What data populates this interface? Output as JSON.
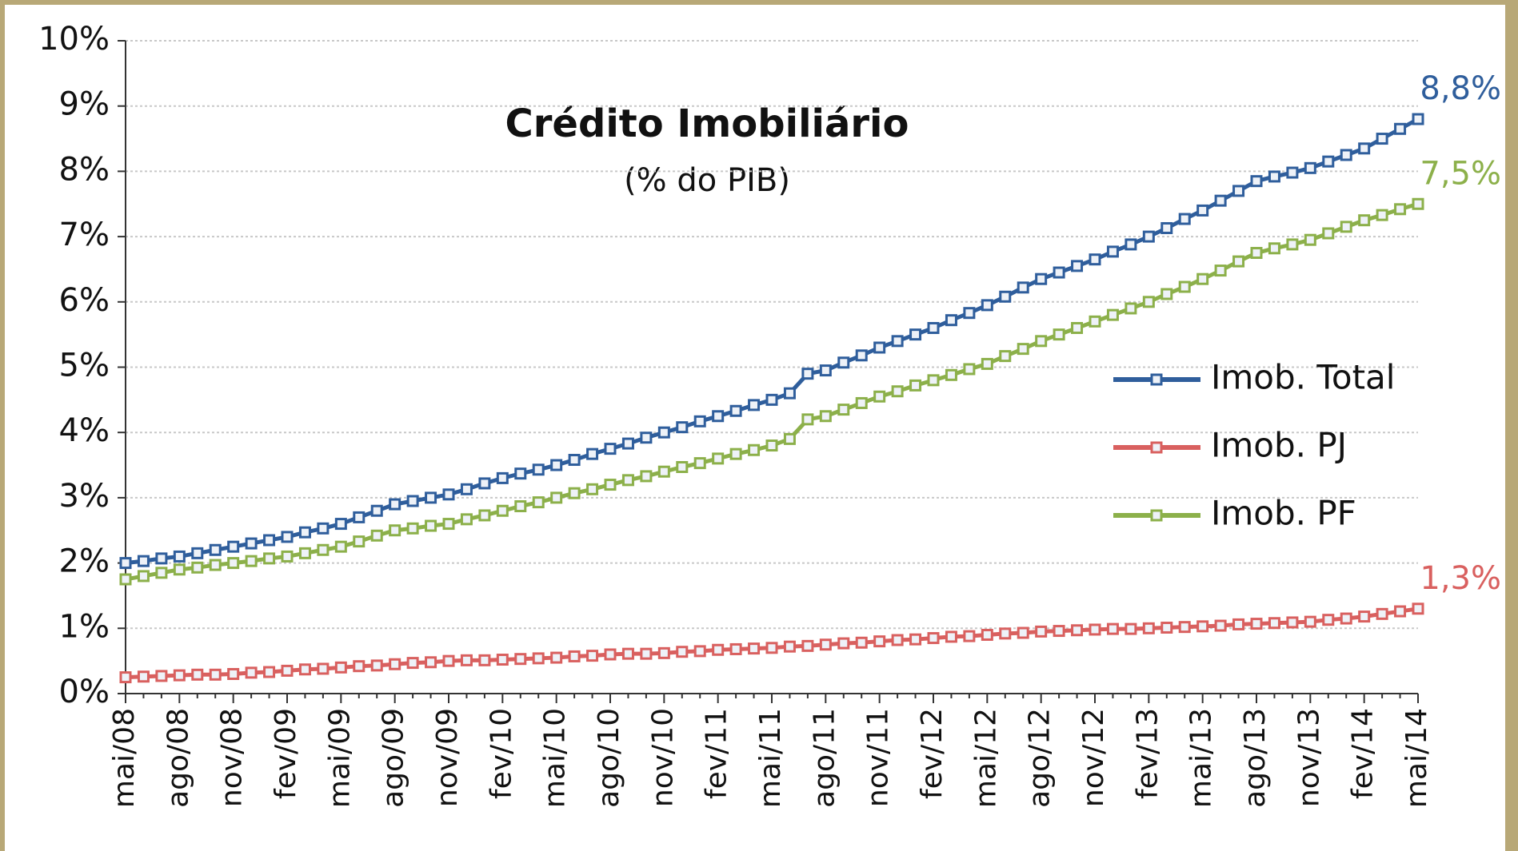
{
  "chart_data": {
    "type": "line",
    "title": "Crédito Imobiliário",
    "subtitle": "(% do PIB)",
    "categories": [
      "mai/08",
      null,
      null,
      "ago/08",
      null,
      null,
      "nov/08",
      null,
      null,
      "fev/09",
      null,
      null,
      "mai/09",
      null,
      null,
      "ago/09",
      null,
      null,
      "nov/09",
      null,
      null,
      "fev/10",
      null,
      null,
      "mai/10",
      null,
      null,
      "ago/10",
      null,
      null,
      "nov/10",
      null,
      null,
      "fev/11",
      null,
      null,
      "mai/11",
      null,
      null,
      "ago/11",
      null,
      null,
      "nov/11",
      null,
      null,
      "fev/12",
      null,
      null,
      "mai/12",
      null,
      null,
      "ago/12",
      null,
      null,
      "nov/12",
      null,
      null,
      "fev/13",
      null,
      null,
      "mai/13",
      null,
      null,
      "ago/13",
      null,
      null,
      "nov/13",
      null,
      null,
      "fev/14",
      null,
      null,
      "mai/14"
    ],
    "series": [
      {
        "name": "Imob. Total",
        "color": "#2f5e9c",
        "values": [
          2.0,
          2.03,
          2.07,
          2.1,
          2.15,
          2.2,
          2.25,
          2.3,
          2.35,
          2.4,
          2.47,
          2.53,
          2.6,
          2.7,
          2.8,
          2.9,
          2.95,
          3.0,
          3.05,
          3.13,
          3.22,
          3.3,
          3.37,
          3.43,
          3.5,
          3.58,
          3.67,
          3.75,
          3.83,
          3.92,
          4.0,
          4.08,
          4.17,
          4.25,
          4.33,
          4.42,
          4.5,
          4.6,
          4.9,
          4.95,
          5.07,
          5.18,
          5.3,
          5.4,
          5.5,
          5.6,
          5.72,
          5.83,
          5.95,
          6.08,
          6.22,
          6.35,
          6.45,
          6.55,
          6.65,
          6.77,
          6.88,
          7.0,
          7.13,
          7.27,
          7.4,
          7.55,
          7.7,
          7.85,
          7.92,
          7.98,
          8.05,
          8.15,
          8.25,
          8.35,
          8.5,
          8.65,
          8.8
        ],
        "value_labels": {
          "72": "8,8%"
        }
      },
      {
        "name": "Imob. PJ",
        "color": "#d9605f",
        "values": [
          0.25,
          0.26,
          0.27,
          0.28,
          0.29,
          0.29,
          0.3,
          0.32,
          0.33,
          0.35,
          0.37,
          0.38,
          0.4,
          0.42,
          0.43,
          0.45,
          0.47,
          0.48,
          0.5,
          0.51,
          0.51,
          0.52,
          0.53,
          0.54,
          0.55,
          0.57,
          0.58,
          0.6,
          0.61,
          0.61,
          0.62,
          0.64,
          0.65,
          0.67,
          0.68,
          0.69,
          0.7,
          0.72,
          0.73,
          0.75,
          0.77,
          0.78,
          0.8,
          0.82,
          0.83,
          0.85,
          0.87,
          0.88,
          0.9,
          0.92,
          0.93,
          0.95,
          0.96,
          0.97,
          0.98,
          0.99,
          0.99,
          1.0,
          1.01,
          1.02,
          1.03,
          1.04,
          1.06,
          1.07,
          1.08,
          1.09,
          1.1,
          1.13,
          1.15,
          1.18,
          1.22,
          1.26,
          1.3
        ],
        "value_labels": {
          "72": "1,3%"
        }
      },
      {
        "name": "Imob. PF",
        "color": "#8cb04a",
        "values": [
          1.75,
          1.8,
          1.85,
          1.9,
          1.93,
          1.97,
          2.0,
          2.03,
          2.07,
          2.1,
          2.15,
          2.2,
          2.25,
          2.33,
          2.42,
          2.5,
          2.53,
          2.57,
          2.6,
          2.67,
          2.73,
          2.8,
          2.87,
          2.93,
          3.0,
          3.07,
          3.13,
          3.2,
          3.27,
          3.33,
          3.4,
          3.47,
          3.53,
          3.6,
          3.67,
          3.73,
          3.8,
          3.9,
          4.2,
          4.25,
          4.35,
          4.45,
          4.55,
          4.63,
          4.72,
          4.8,
          4.88,
          4.97,
          5.05,
          5.17,
          5.28,
          5.4,
          5.5,
          5.6,
          5.7,
          5.8,
          5.9,
          6.0,
          6.12,
          6.23,
          6.35,
          6.48,
          6.62,
          6.75,
          6.82,
          6.88,
          6.95,
          7.05,
          7.15,
          7.25,
          7.33,
          7.42,
          7.5
        ],
        "value_labels": {
          "72": "7,5%"
        }
      }
    ],
    "ylim": [
      0,
      10
    ],
    "yticks": [
      {
        "value": 0,
        "label": "0%"
      },
      {
        "value": 1,
        "label": "1%"
      },
      {
        "value": 2,
        "label": "2%"
      },
      {
        "value": 3,
        "label": "3%"
      },
      {
        "value": 4,
        "label": "4%"
      },
      {
        "value": 5,
        "label": "5%"
      },
      {
        "value": 6,
        "label": "6%"
      },
      {
        "value": 7,
        "label": "7%"
      },
      {
        "value": 8,
        "label": "8%"
      },
      {
        "value": 9,
        "label": "9%"
      },
      {
        "value": 10,
        "label": "10%"
      }
    ],
    "grid": true,
    "legend": "right"
  }
}
